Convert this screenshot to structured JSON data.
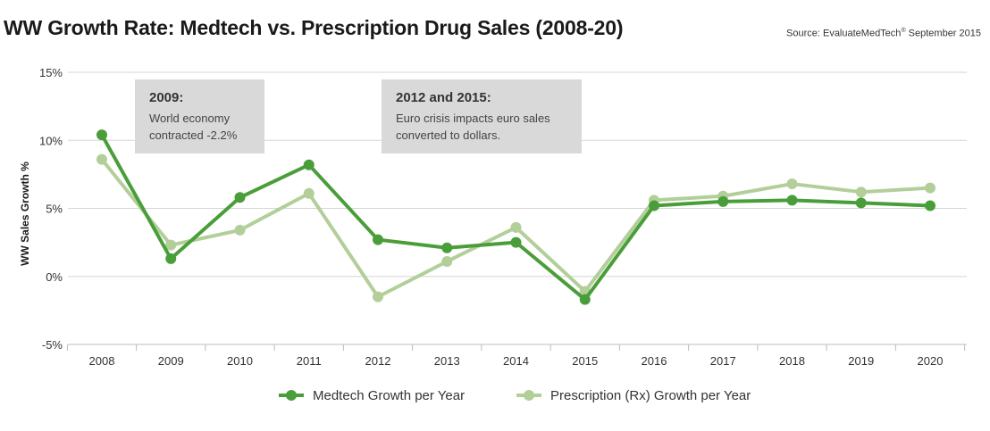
{
  "chart_data": {
    "type": "line",
    "title": "WW Growth Rate: Medtech vs. Prescription Drug Sales (2008-20)",
    "source": "Source: EvaluateMedTech",
    "source_sup": "®",
    "source_date": " September 2015",
    "xlabel": "",
    "ylabel": "WW Sales Growth %",
    "categories": [
      "2008",
      "2009",
      "2010",
      "2011",
      "2012",
      "2013",
      "2014",
      "2015",
      "2016",
      "2017",
      "2018",
      "2019",
      "2020"
    ],
    "ylim": [
      -5,
      15
    ],
    "yticks": [
      15,
      10,
      5,
      0,
      -5
    ],
    "ytick_labels": [
      "15%",
      "10%",
      "5%",
      "0%",
      "-5%"
    ],
    "series": [
      {
        "name": "Medtech Growth per Year",
        "color": "#4a9e3a",
        "values": [
          10.4,
          1.3,
          5.8,
          8.2,
          2.7,
          2.1,
          2.5,
          -1.7,
          5.2,
          5.5,
          5.6,
          5.4,
          5.2
        ]
      },
      {
        "name": "Prescription (Rx) Growth per Year",
        "color": "#b2cf9a",
        "values": [
          8.6,
          2.3,
          3.4,
          6.1,
          -1.5,
          1.1,
          3.6,
          -1.1,
          5.6,
          5.9,
          6.8,
          6.2,
          6.5
        ]
      }
    ],
    "annotations": [
      {
        "title": "2009:",
        "lines": [
          "World economy",
          "contracted -2.2%"
        ]
      },
      {
        "title": "2012 and 2015:",
        "lines": [
          "Euro crisis impacts euro sales",
          "converted to dollars."
        ]
      }
    ],
    "grid": true,
    "legend": "bottom-center"
  }
}
